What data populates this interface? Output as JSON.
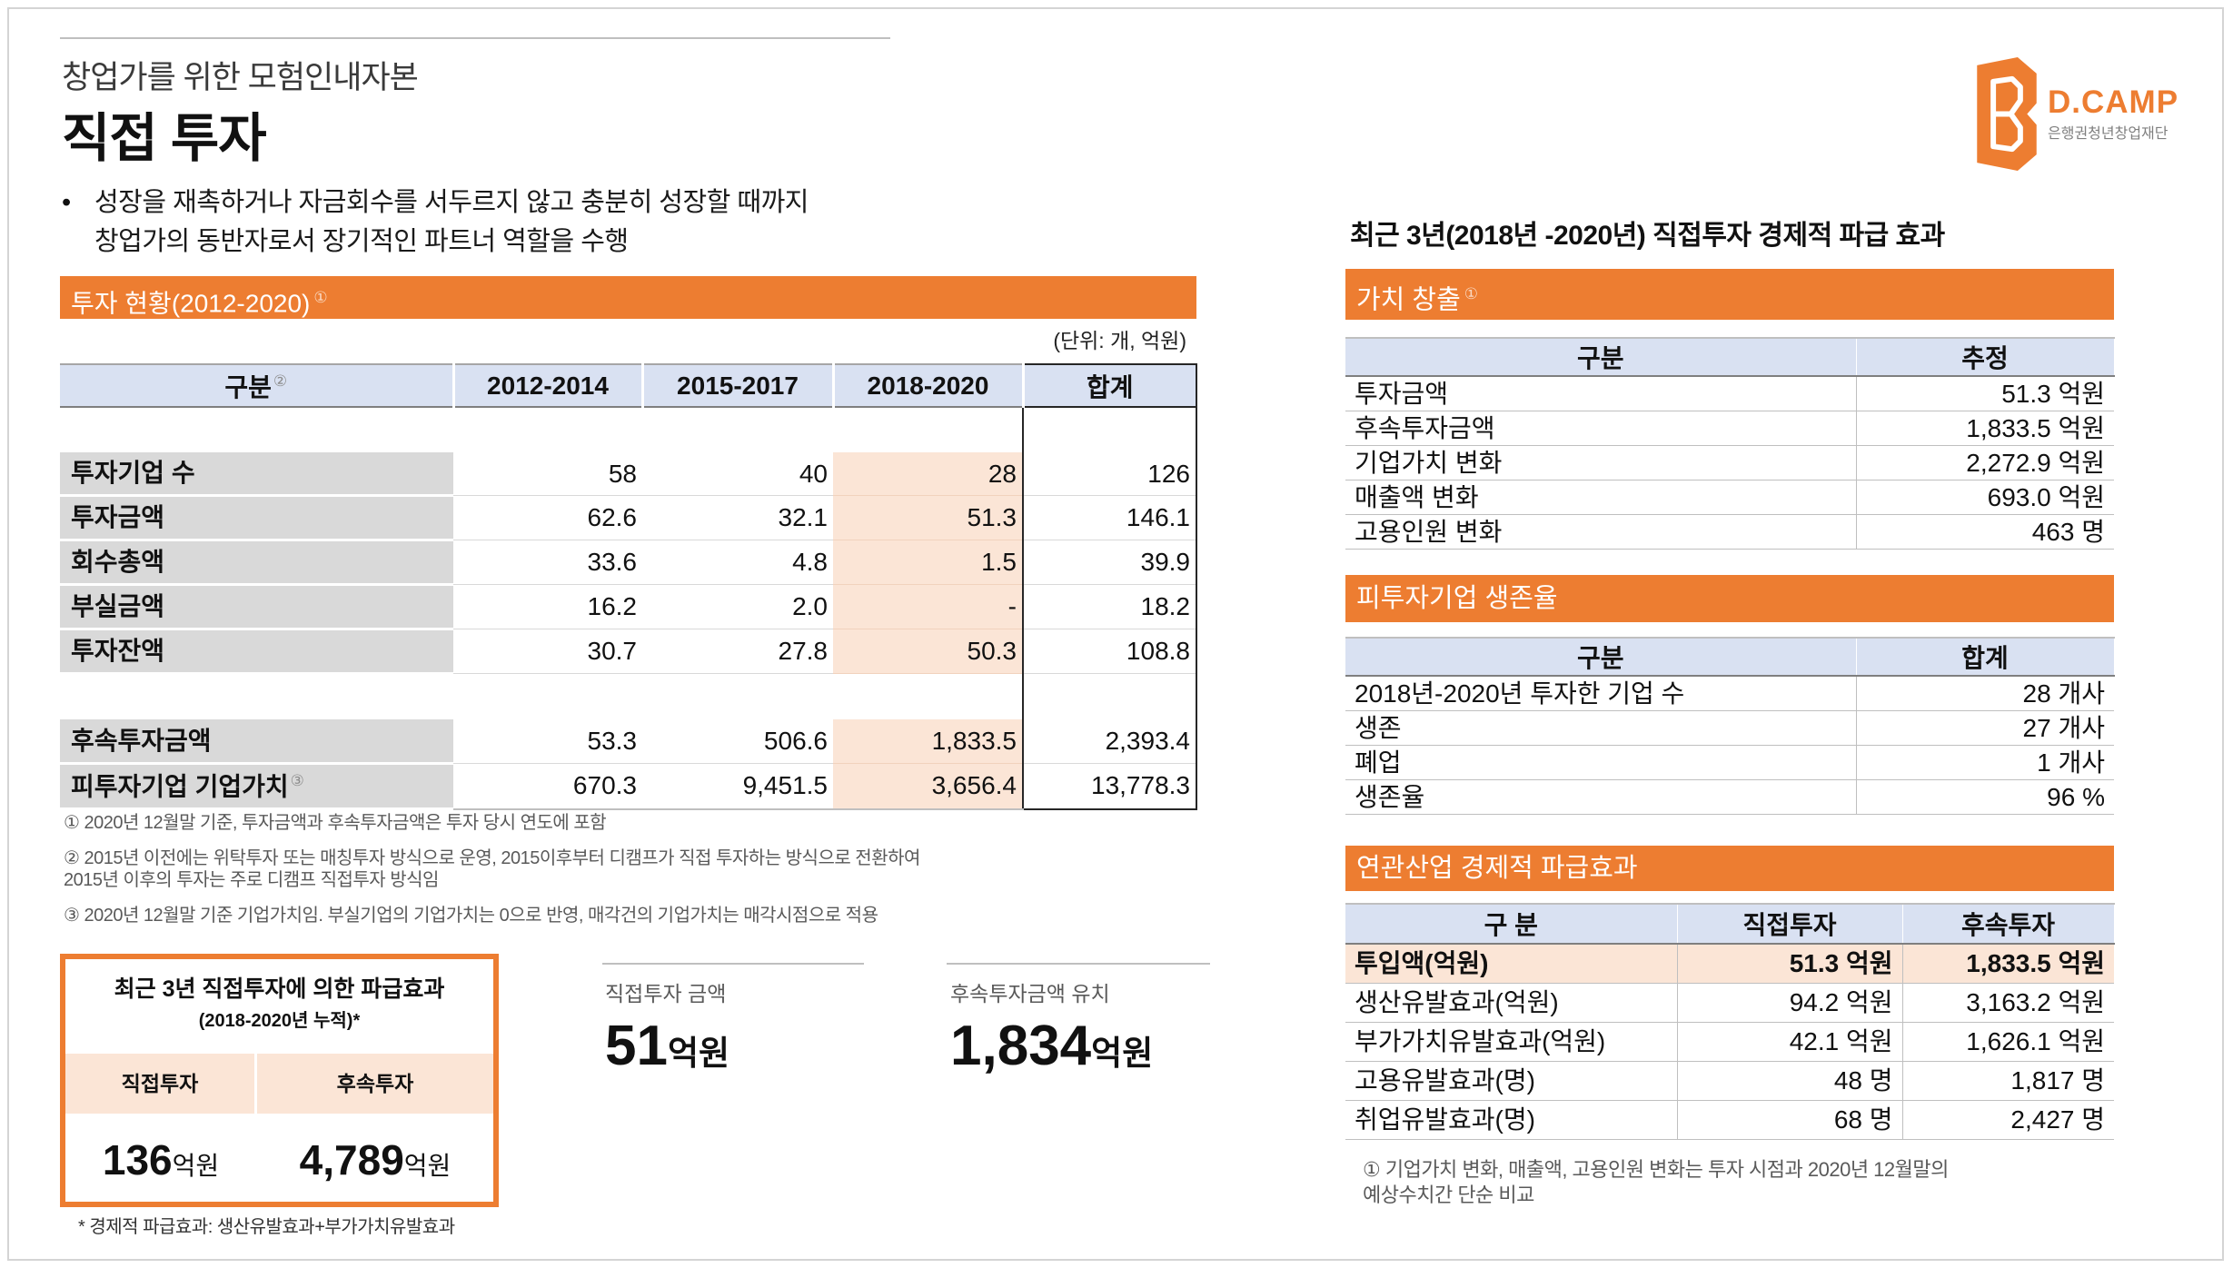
{
  "colors": {
    "accent": "#ed7d31",
    "header_bg": "#d9e1f2",
    "label_bg": "#d9d9d9",
    "highlight": "#fbe5d6"
  },
  "header": {
    "subtitle": "창업가를 위한 모험인내자본",
    "title": "직접 투자"
  },
  "bullet": {
    "symbol": "•",
    "line1": "성장을 재촉하거나 자금회수를 서두르지 않고 충분히 성장할 때까지",
    "line2": "창업가의 동반자로서 장기적인 파트너 역할을 수행"
  },
  "investment_status": {
    "section_title": "투자 현황(2012-2020)",
    "section_mark": "①",
    "unit": "(단위: 개, 억원)",
    "columns": [
      "구분",
      "2012-2014",
      "2015-2017",
      "2018-2020",
      "합계"
    ],
    "column0_mark": "②",
    "groups": [
      [
        {
          "label": "투자기업 수",
          "values": [
            "58",
            "40",
            "28",
            "126"
          ]
        },
        {
          "label": "투자금액",
          "values": [
            "62.6",
            "32.1",
            "51.3",
            "146.1"
          ]
        },
        {
          "label": "회수총액",
          "values": [
            "33.6",
            "4.8",
            "1.5",
            "39.9"
          ]
        },
        {
          "label": "부실금액",
          "values": [
            "16.2",
            "2.0",
            "-",
            "18.2"
          ]
        },
        {
          "label": "투자잔액",
          "values": [
            "30.7",
            "27.8",
            "50.3",
            "108.8"
          ]
        }
      ],
      [
        {
          "label": "후속투자금액",
          "values": [
            "53.3",
            "506.6",
            "1,833.5",
            "2,393.4"
          ]
        },
        {
          "label": "피투자기업 기업가치",
          "mark": "③",
          "values": [
            "670.3",
            "9,451.5",
            "3,656.4",
            "13,778.3"
          ]
        }
      ]
    ],
    "footnotes": [
      "① 2020년 12월말 기준, 투자금액과 후속투자금액은 투자 당시 연도에 포함",
      "② 2015년 이전에는 위탁투자 또는 매칭투자 방식으로 운영, 2015이후부터 디캠프가 직접 투자하는 방식으로 전환하여",
      "2015년 이후의 투자는 주로 디캠프 직접투자 방식임",
      "③ 2020년 12월말 기준 기업가치임. 부실기업의 기업가치는 0으로 반영,  매각건의 기업가치는 매각시점으로 적용"
    ]
  },
  "impact_box": {
    "title": "최근 3년 직접투자에 의한 파급효과",
    "subtitle": "(2018-2020년 누적)*",
    "direct_label": "직접투자",
    "follow_label": "후속투자",
    "direct_value": "136",
    "direct_unit": "억원",
    "follow_value": "4,789",
    "follow_unit": "억원",
    "footnote": "* 경제적 파급효과: 생산유발효과+부가가치유발효과"
  },
  "stats": {
    "direct": {
      "label": "직접투자 금액",
      "value": "51",
      "unit": "억원"
    },
    "follow": {
      "label": "후속투자금액 유치",
      "value": "1,834",
      "unit": "억원"
    }
  },
  "logo": {
    "icon": "dcamp-logo-icon",
    "name": "D.CAMP",
    "subtitle": "은행권청년창업재단"
  },
  "right_heading": "최근 3년(2018년 -2020년) 직접투자 경제적 파급 효과",
  "value_creation": {
    "title": "가치 창출",
    "mark": "①",
    "columns": [
      "구분",
      "추정"
    ],
    "rows": [
      [
        "투자금액",
        "51.3 억원"
      ],
      [
        "후속투자금액",
        "1,833.5 억원"
      ],
      [
        "기업가치 변화",
        "2,272.9 억원"
      ],
      [
        "매출액 변화",
        "693.0 억원"
      ],
      [
        "고용인원 변화",
        "463 명"
      ]
    ]
  },
  "survival": {
    "title": "피투자기업 생존율",
    "columns": [
      "구분",
      "합계"
    ],
    "rows": [
      [
        "2018년-2020년 투자한 기업 수",
        "28 개사"
      ],
      [
        "생존",
        "27 개사"
      ],
      [
        "폐업",
        "1 개사"
      ],
      [
        "생존율",
        "96 %"
      ]
    ]
  },
  "industry": {
    "title": "연관산업 경제적 파급효과",
    "columns": [
      "구 분",
      "직접투자",
      "후속투자"
    ],
    "rows": [
      [
        "투입액(억원)",
        "51.3 억원",
        "1,833.5 억원"
      ],
      [
        "생산유발효과(억원)",
        "94.2 억원",
        "3,163.2 억원"
      ],
      [
        "부가가치유발효과(억원)",
        "42.1 억원",
        "1,626.1 억원"
      ],
      [
        "고용유발효과(명)",
        "48 명",
        "1,817 명"
      ],
      [
        "취업유발효과(명)",
        "68 명",
        "2,427 명"
      ]
    ]
  },
  "right_footnote": {
    "line1": "① 기업가치 변화, 매출액, 고용인원 변화는 투자 시점과 2020년 12월말의",
    "line2": "예상수치간 단순 비교"
  }
}
